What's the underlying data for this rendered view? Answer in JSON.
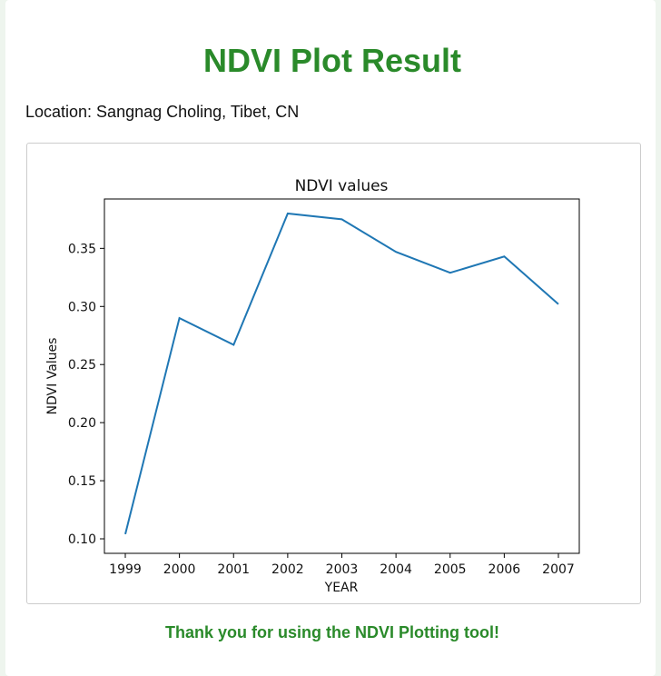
{
  "page": {
    "title": "NDVI Plot Result",
    "location": "Location: Sangnag Choling, Tibet, CN",
    "footer": "Thank you for using the NDVI Plotting tool!"
  },
  "colors": {
    "accent": "#2a8a2a",
    "line": "#1f77b4"
  },
  "chart_data": {
    "type": "line",
    "title": "NDVI values",
    "xlabel": "YEAR",
    "ylabel": "NDVI Values",
    "x": [
      "1999",
      "2000",
      "2001",
      "2002",
      "2003",
      "2004",
      "2005",
      "2006",
      "2007"
    ],
    "series": [
      {
        "values": [
          0.104,
          0.29,
          0.267,
          0.38,
          0.375,
          0.347,
          0.329,
          0.343,
          0.302
        ]
      }
    ],
    "yticks": [
      0.1,
      0.15,
      0.2,
      0.25,
      0.3,
      0.35
    ],
    "ytick_labels": [
      "0.10",
      "0.15",
      "0.20",
      "0.25",
      "0.30",
      "0.35"
    ],
    "ylim": [
      0.0875,
      0.3925
    ],
    "grid": false,
    "legend": "none"
  }
}
